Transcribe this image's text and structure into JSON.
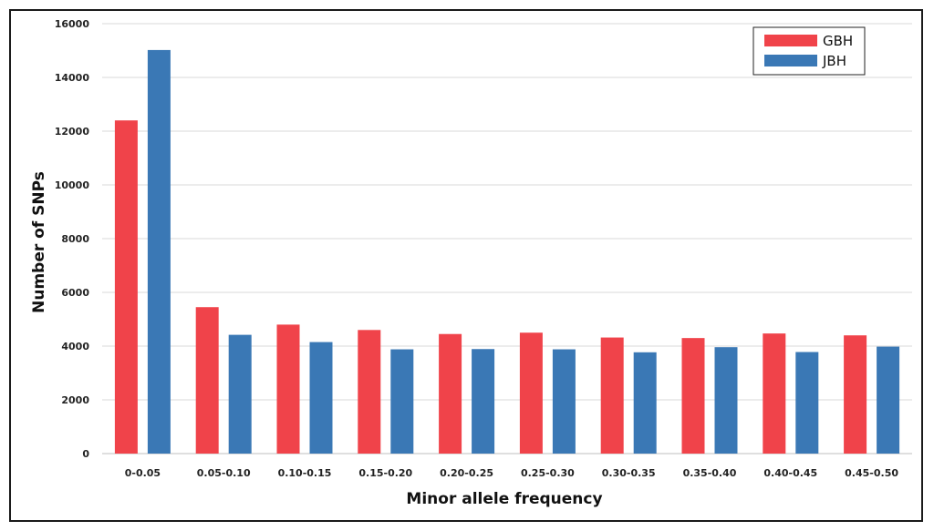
{
  "chart_data": {
    "type": "bar",
    "categories": [
      "0-0.05",
      "0.05-0.10",
      "0.10-0.15",
      "0.15-0.20",
      "0.20-0.25",
      "0.25-0.30",
      "0.30-0.35",
      "0.35-0.40",
      "0.40-0.45",
      "0.45-0.50"
    ],
    "series": [
      {
        "name": "GBH",
        "color": "#f0434a",
        "values": [
          12400,
          5450,
          4800,
          4600,
          4450,
          4500,
          4320,
          4300,
          4470,
          4400
        ]
      },
      {
        "name": "JBH",
        "color": "#3a78b5",
        "values": [
          15020,
          4420,
          4150,
          3880,
          3890,
          3880,
          3770,
          3960,
          3780,
          3980
        ]
      }
    ],
    "title": "",
    "xlabel": "Minor allele frequency",
    "ylabel": "Number of SNPs",
    "ylim": [
      0,
      16000
    ],
    "yticks": [
      0,
      2000,
      4000,
      6000,
      8000,
      10000,
      12000,
      14000,
      16000
    ],
    "grid": true,
    "legend_position": "top-right"
  }
}
